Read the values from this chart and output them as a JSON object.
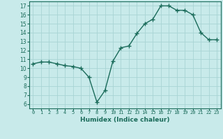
{
  "x": [
    0,
    1,
    2,
    3,
    4,
    5,
    6,
    7,
    8,
    9,
    10,
    11,
    12,
    13,
    14,
    15,
    16,
    17,
    18,
    19,
    20,
    21,
    22,
    23
  ],
  "y": [
    10.5,
    10.7,
    10.7,
    10.5,
    10.3,
    10.2,
    10.0,
    9.0,
    6.2,
    7.5,
    10.8,
    12.3,
    12.5,
    13.9,
    15.0,
    15.5,
    17.0,
    17.0,
    16.5,
    16.5,
    16.0,
    14.0,
    13.2,
    13.2
  ],
  "line_color": "#1a6b5a",
  "marker": "+",
  "marker_size": 4,
  "xlabel": "Humidex (Indice chaleur)",
  "ylim": [
    5.5,
    17.5
  ],
  "xlim": [
    -0.5,
    23.5
  ],
  "yticks": [
    6,
    7,
    8,
    9,
    10,
    11,
    12,
    13,
    14,
    15,
    16,
    17
  ],
  "xticks": [
    0,
    1,
    2,
    3,
    4,
    5,
    6,
    7,
    8,
    9,
    10,
    11,
    12,
    13,
    14,
    15,
    16,
    17,
    18,
    19,
    20,
    21,
    22,
    23
  ],
  "xtick_labels": [
    "0",
    "1",
    "2",
    "3",
    "4",
    "5",
    "6",
    "7",
    "8",
    "9",
    "10",
    "11",
    "12",
    "13",
    "14",
    "15",
    "16",
    "17",
    "18",
    "19",
    "20",
    "21",
    "22",
    "23"
  ],
  "bg_color": "#c8eaea",
  "grid_color": "#a8d4d4",
  "font_color": "#1a6b5a"
}
